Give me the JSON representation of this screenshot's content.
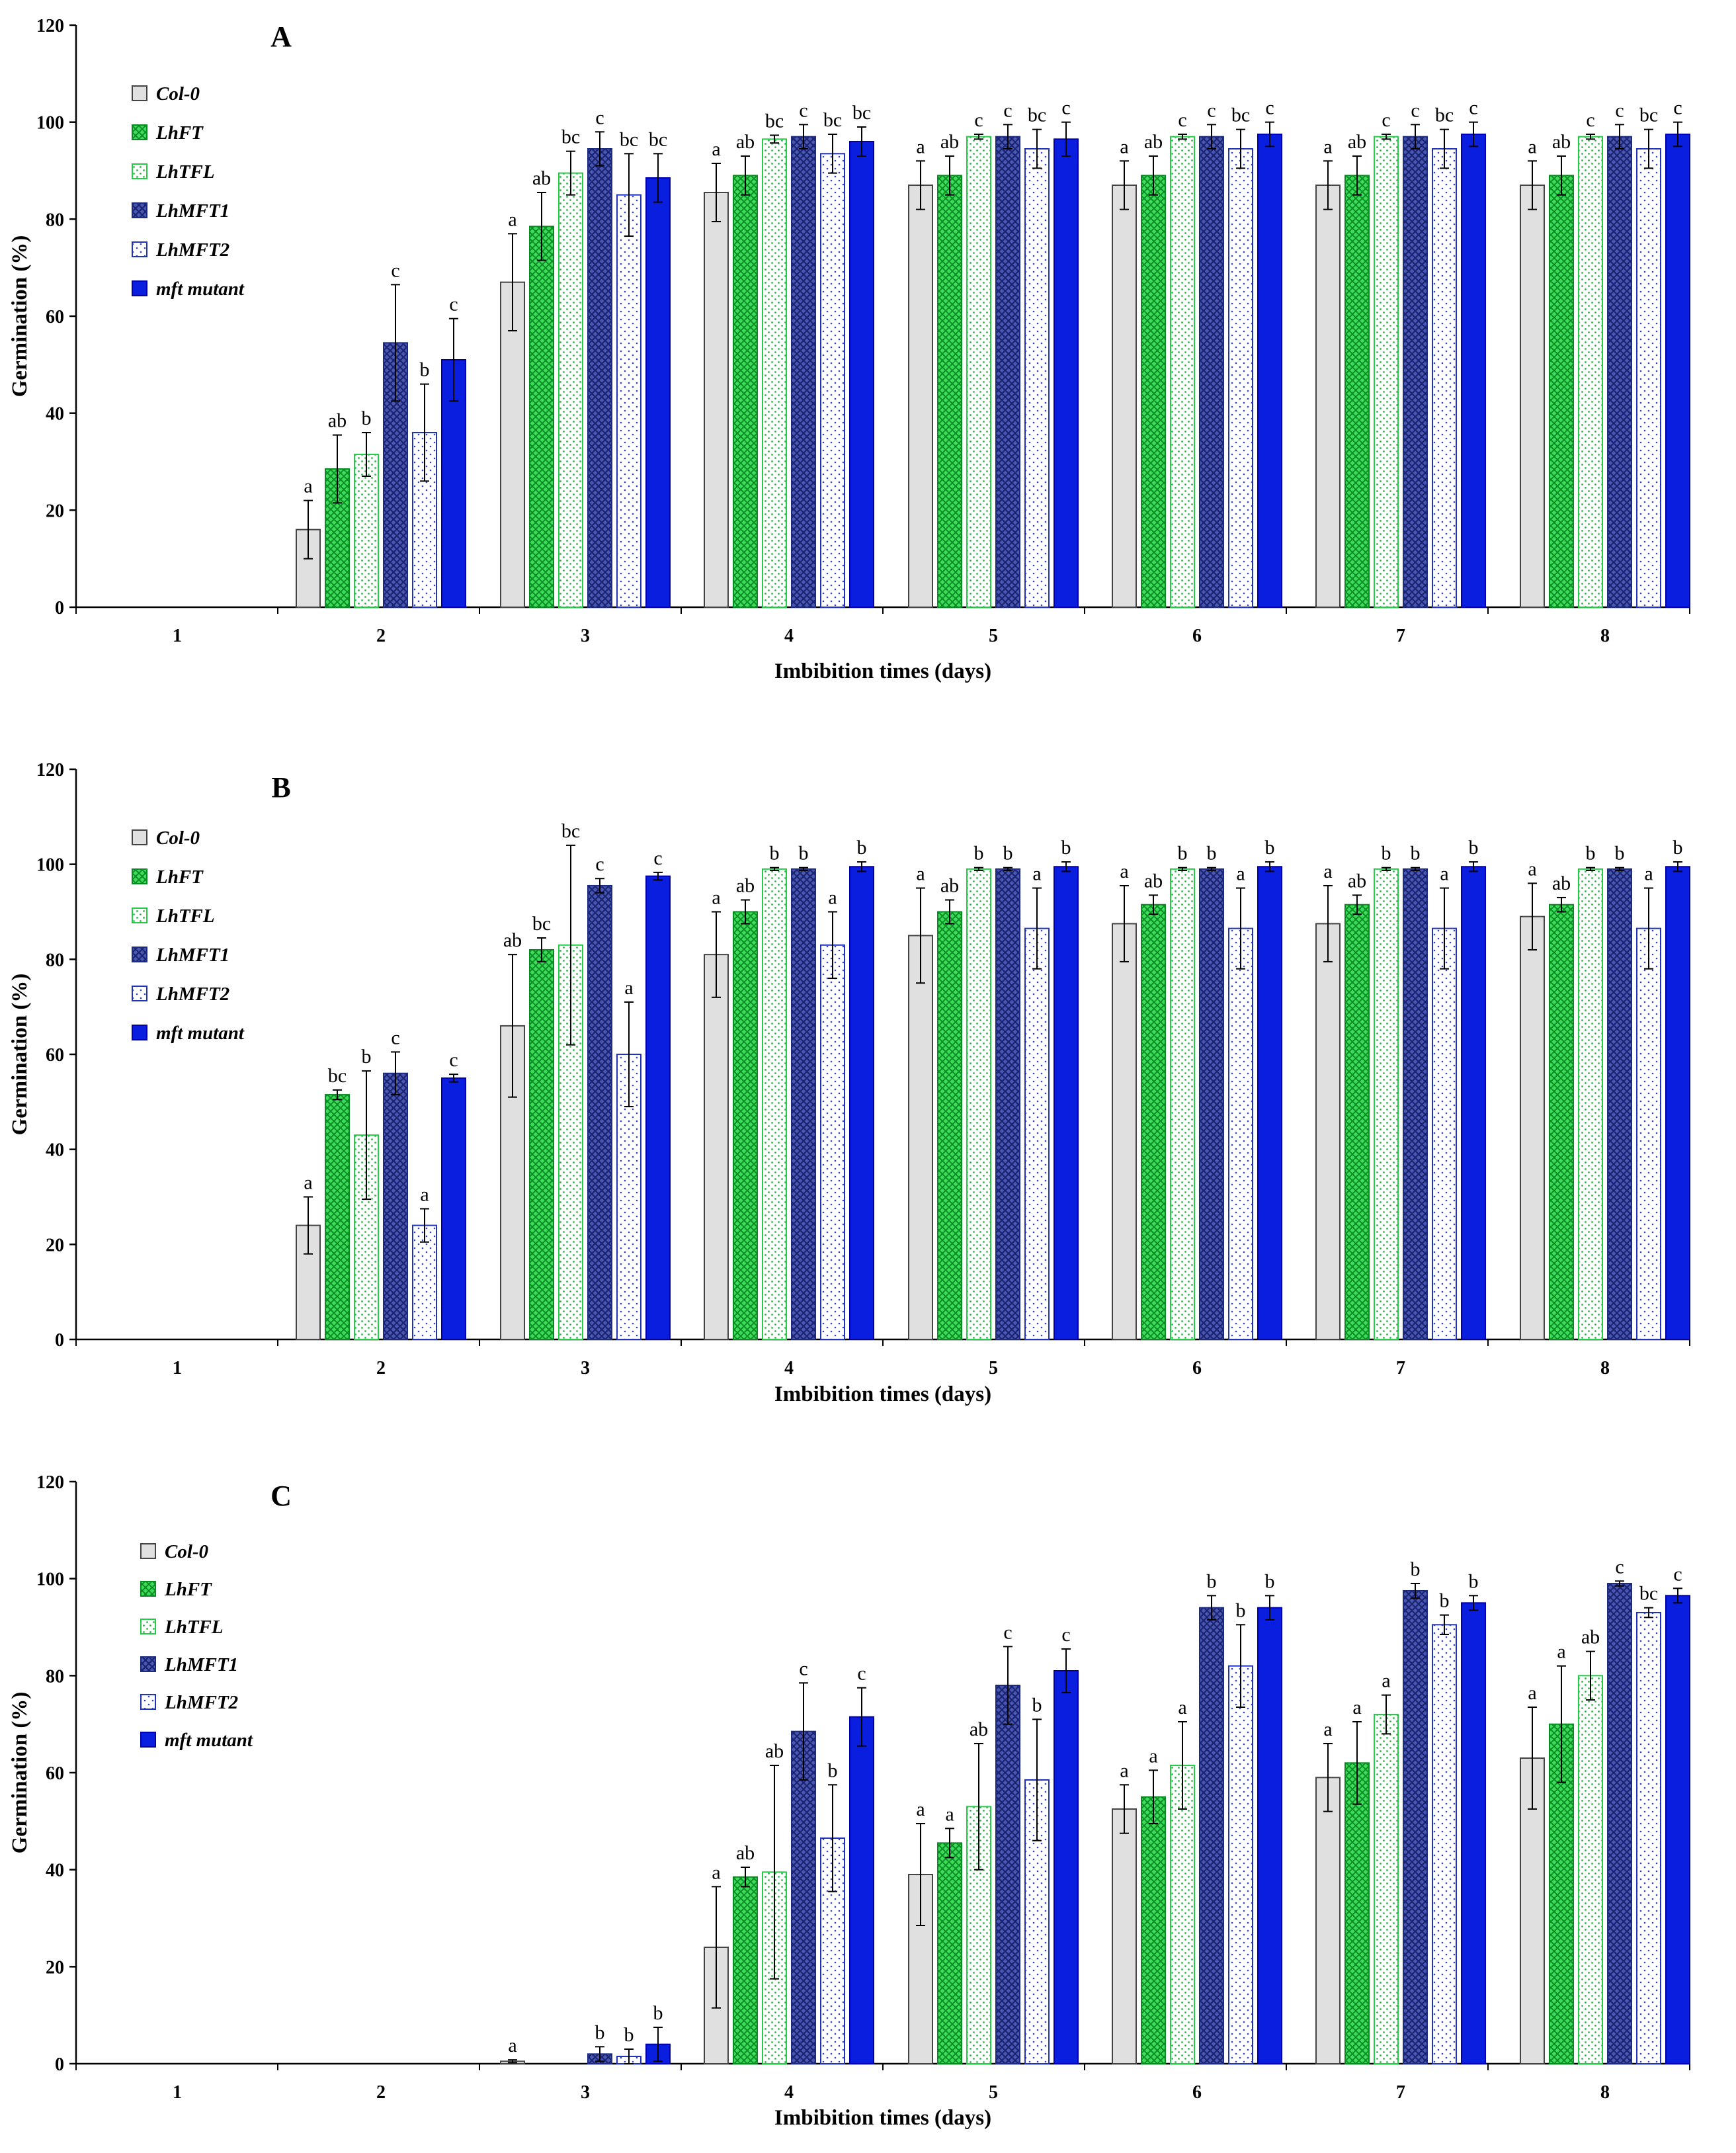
{
  "series_styles": [
    {
      "name": "Col-0",
      "fill": "#e0e0e0",
      "stroke": "#444444",
      "pattern": "solid"
    },
    {
      "name": "LhFT",
      "fill": "#22cc44",
      "stroke": "#0a8a22",
      "pattern": "cross-light"
    },
    {
      "name": "LhTFL",
      "fill": "#ffffff",
      "stroke": "#22cc44",
      "pattern": "dots-green"
    },
    {
      "name": "LhMFT1",
      "fill": "#3a48a6",
      "stroke": "#1c2a80",
      "pattern": "cross-dark"
    },
    {
      "name": "LhMFT2",
      "fill": "#ffffff",
      "stroke": "#2233bb",
      "pattern": "dots-blue"
    },
    {
      "name": "mft mutant",
      "fill": "#0a1ee0",
      "stroke": "#0000aa",
      "pattern": "solid"
    }
  ],
  "chart_data": [
    {
      "type": "bar",
      "panel": "A",
      "xlabel": "Imbibition times (days)",
      "ylabel": "Germination (%)",
      "ylim": [
        0,
        120
      ],
      "yticks": [
        0,
        20,
        40,
        60,
        80,
        100,
        120
      ],
      "categories": [
        "1",
        "2",
        "3",
        "4",
        "5",
        "6",
        "7",
        "8"
      ],
      "legend": [
        "Col-0",
        "LhFT",
        "LhTFL",
        "LhMFT1",
        "LhMFT2",
        "mft mutant"
      ],
      "series": [
        {
          "name": "Col-0",
          "values": [
            null,
            16,
            67,
            85.5,
            87,
            87,
            87,
            87
          ],
          "errors": [
            0,
            6,
            10,
            6,
            5,
            5,
            5,
            5
          ],
          "labels": [
            "",
            "a",
            "a",
            "a",
            "a",
            "a",
            "a",
            "a"
          ]
        },
        {
          "name": "LhFT",
          "values": [
            null,
            28.5,
            78.5,
            89,
            89,
            89,
            89,
            89
          ],
          "errors": [
            0,
            7,
            7,
            4,
            4,
            4,
            4,
            4
          ],
          "labels": [
            "",
            "ab",
            "ab",
            "ab",
            "ab",
            "ab",
            "ab",
            "ab"
          ]
        },
        {
          "name": "LhTFL",
          "values": [
            null,
            31.5,
            89.5,
            96.5,
            97,
            97,
            97,
            97
          ],
          "errors": [
            0,
            4.5,
            4.5,
            0.8,
            0.5,
            0.5,
            0.5,
            0.5
          ],
          "labels": [
            "",
            "b",
            "bc",
            "bc",
            "c",
            "c",
            "c",
            "c"
          ]
        },
        {
          "name": "LhMFT1",
          "values": [
            null,
            54.5,
            94.5,
            97,
            97,
            97,
            97,
            97
          ],
          "errors": [
            0,
            12,
            3.5,
            2.5,
            2.5,
            2.5,
            2.5,
            2.5
          ],
          "labels": [
            "",
            "c",
            "c",
            "c",
            "c",
            "c",
            "c",
            "c"
          ]
        },
        {
          "name": "LhMFT2",
          "values": [
            null,
            36,
            85,
            93.5,
            94.5,
            94.5,
            94.5,
            94.5
          ],
          "errors": [
            0,
            10,
            8.5,
            4,
            4,
            4,
            4,
            4
          ],
          "labels": [
            "",
            "b",
            "bc",
            "bc",
            "bc",
            "bc",
            "bc",
            "bc"
          ]
        },
        {
          "name": "mft mutant",
          "values": [
            null,
            51,
            88.5,
            96,
            96.5,
            97.5,
            97.5,
            97.5
          ],
          "errors": [
            0,
            8.5,
            5,
            3,
            3.5,
            2.5,
            2.5,
            2.5
          ],
          "labels": [
            "",
            "c",
            "bc",
            "bc",
            "c",
            "c",
            "c",
            "c"
          ]
        }
      ]
    },
    {
      "type": "bar",
      "panel": "B",
      "xlabel": "Imbibition times (days)",
      "ylabel": "Germination (%)",
      "ylim": [
        0,
        120
      ],
      "yticks": [
        0,
        20,
        40,
        60,
        80,
        100,
        120
      ],
      "categories": [
        "1",
        "2",
        "3",
        "4",
        "5",
        "6",
        "7",
        "8"
      ],
      "legend": [
        "Col-0",
        "LhFT",
        "LhTFL",
        "LhMFT1",
        "LhMFT2",
        "mft mutant"
      ],
      "series": [
        {
          "name": "Col-0",
          "values": [
            null,
            24,
            66,
            81,
            85,
            87.5,
            87.5,
            89
          ],
          "errors": [
            0,
            6,
            15,
            9,
            10,
            8,
            8,
            7
          ],
          "labels": [
            "",
            "a",
            "ab",
            "a",
            "a",
            "a",
            "a",
            "a"
          ]
        },
        {
          "name": "LhFT",
          "values": [
            null,
            51.5,
            82,
            90,
            90,
            91.5,
            91.5,
            91.5
          ],
          "errors": [
            0,
            1,
            2.5,
            2.5,
            2.5,
            2,
            2,
            1.5
          ],
          "labels": [
            "",
            "bc",
            "bc",
            "ab",
            "ab",
            "ab",
            "ab",
            "ab"
          ]
        },
        {
          "name": "LhTFL",
          "values": [
            null,
            43,
            83,
            99,
            99,
            99,
            99,
            99
          ],
          "errors": [
            0,
            13.5,
            21,
            0.3,
            0.3,
            0.3,
            0.3,
            0.3
          ],
          "labels": [
            "",
            "b",
            "bc",
            "b",
            "b",
            "b",
            "b",
            "b"
          ]
        },
        {
          "name": "LhMFT1",
          "values": [
            null,
            56,
            95.5,
            99,
            99,
            99,
            99,
            99
          ],
          "errors": [
            0,
            4.5,
            1.5,
            0.3,
            0.3,
            0.3,
            0.3,
            0.3
          ],
          "labels": [
            "",
            "c",
            "c",
            "b",
            "b",
            "b",
            "b",
            "b"
          ]
        },
        {
          "name": "LhMFT2",
          "values": [
            null,
            24,
            60,
            83,
            86.5,
            86.5,
            86.5,
            86.5
          ],
          "errors": [
            0,
            3.5,
            11,
            7,
            8.5,
            8.5,
            8.5,
            8.5
          ],
          "labels": [
            "",
            "a",
            "a",
            "a",
            "a",
            "a",
            "a",
            "a"
          ]
        },
        {
          "name": "mft mutant",
          "values": [
            null,
            55,
            97.5,
            99.5,
            99.5,
            99.5,
            99.5,
            99.5
          ],
          "errors": [
            0,
            0.8,
            0.8,
            1,
            1,
            1,
            1,
            1
          ],
          "labels": [
            "",
            "c",
            "c",
            "b",
            "b",
            "b",
            "b",
            "b"
          ]
        }
      ]
    },
    {
      "type": "bar",
      "panel": "C",
      "xlabel": "Imbibition times (days)",
      "ylabel": "Germination (%)",
      "ylim": [
        0,
        120
      ],
      "yticks": [
        0,
        20,
        40,
        60,
        80,
        100,
        120
      ],
      "categories": [
        "1",
        "2",
        "3",
        "4",
        "5",
        "6",
        "7",
        "8"
      ],
      "legend": [
        "Col-0",
        "LhFT",
        "LhTFL",
        "LhMFT1",
        "LhMFT2",
        "mft mutant"
      ],
      "series": [
        {
          "name": "Col-0",
          "values": [
            null,
            null,
            0.5,
            24,
            39,
            52.5,
            59,
            63
          ],
          "errors": [
            0,
            0,
            0.3,
            12.5,
            10.5,
            5,
            7,
            10.5
          ],
          "labels": [
            "",
            "",
            "a",
            "a",
            "a",
            "a",
            "a",
            "a"
          ]
        },
        {
          "name": "LhFT",
          "values": [
            null,
            null,
            null,
            38.5,
            45.5,
            55,
            62,
            70
          ],
          "errors": [
            0,
            0,
            0,
            2,
            3,
            5.5,
            8.5,
            12
          ],
          "labels": [
            "",
            "",
            "",
            "ab",
            "a",
            "a",
            "a",
            "a"
          ]
        },
        {
          "name": "LhTFL",
          "values": [
            null,
            null,
            null,
            39.5,
            53,
            61.5,
            72,
            80
          ],
          "errors": [
            0,
            0,
            0,
            22,
            13,
            9,
            4,
            5
          ],
          "labels": [
            "",
            "",
            "",
            "ab",
            "ab",
            "a",
            "a",
            "ab"
          ]
        },
        {
          "name": "LhMFT1",
          "values": [
            null,
            null,
            2,
            68.5,
            78,
            94,
            97.5,
            99
          ],
          "errors": [
            0,
            0,
            1.5,
            10,
            8,
            2.5,
            1.5,
            0.5
          ],
          "labels": [
            "",
            "",
            "b",
            "c",
            "c",
            "b",
            "b",
            "c"
          ]
        },
        {
          "name": "LhMFT2",
          "values": [
            null,
            null,
            1.5,
            46.5,
            58.5,
            82,
            90.5,
            93
          ],
          "errors": [
            0,
            0,
            1.5,
            11,
            12.5,
            8.5,
            2,
            1
          ],
          "labels": [
            "",
            "",
            "b",
            "b",
            "b",
            "b",
            "b",
            "bc"
          ]
        },
        {
          "name": "mft mutant",
          "values": [
            null,
            null,
            4,
            71.5,
            81,
            94,
            95,
            96.5
          ],
          "errors": [
            0,
            0,
            3.5,
            6,
            4.5,
            2.5,
            1.5,
            1.5
          ],
          "labels": [
            "",
            "",
            "b",
            "c",
            "c",
            "b",
            "b",
            "c"
          ]
        }
      ]
    }
  ]
}
